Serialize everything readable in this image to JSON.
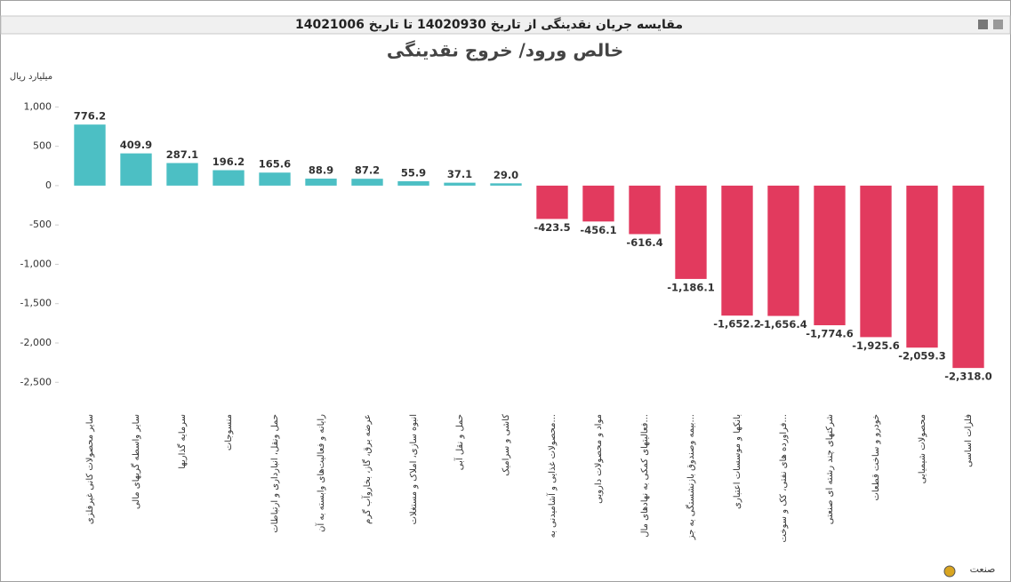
{
  "window_title": "مقایسه جریان نقدینگی از تاریخ 14020930 تا تاریخ 14021006",
  "chart_data": {
    "type": "bar",
    "title": "خالص ورود/ خروج نقدینگی",
    "y_label": "میلیارد ریال",
    "x_label": "صنعت",
    "categories": [
      "سایر محصولات کانی غیرفلزی",
      "سایر واسطه گریهای مالی",
      "سرمایه گذاریها",
      "منسوجات",
      "حمل ونقل، انبارداری و ارتباطات",
      "رایانه و فعالیت‌های وابسته به آن",
      "عرضه برق، گاز، بخاروآب گرم",
      "انبوه سازی، املاک و مستغلات",
      "حمل و نقل آبی",
      "کاشی و سرامیک",
      "محصولات غذایی و آشامیدنی به...",
      "مواد و محصولات دارویی",
      "فعالیتهای کمکی به نهادهای مال...",
      "بیمه وصندوق بازنشستگی به جز...",
      "بانکها و موسسات اعتباری",
      "فراورده های نفتی، کک و سوخت...",
      "شرکتهای چند رشته ای صنعتی",
      "خودرو و ساخت قطعات",
      "محصولات شیمیایی",
      "فلزات اساسی"
    ],
    "values": [
      776.2,
      409.9,
      287.1,
      196.2,
      165.6,
      88.9,
      87.2,
      55.9,
      37.1,
      29.0,
      -423.5,
      -456.1,
      -616.4,
      -1186.1,
      -1652.2,
      -1656.4,
      -1774.6,
      -1925.6,
      -2059.3,
      -2318.0
    ],
    "value_labels": [
      "776.2",
      "409.9",
      "287.1",
      "196.2",
      "165.6",
      "88.9",
      "87.2",
      "55.9",
      "37.1",
      "29.0",
      "-423.5",
      "-456.1",
      "-616.4",
      "-1,186.1",
      "-1,652.2",
      "-1,656.4",
      "-1,774.6",
      "-1,925.6",
      "-2,059.3",
      "-2,318.0"
    ],
    "colors": {
      "positive": "#4cbfc4",
      "negative": "#e23a5e"
    },
    "ylim": [
      -2610,
      1230
    ],
    "yticks": [
      {
        "value": 1000,
        "label": "1,000"
      },
      500,
      0,
      -500,
      {
        "value": -1000,
        "label": "-1,000"
      },
      {
        "value": -1500,
        "label": "-1,500"
      },
      {
        "value": -2000,
        "label": "-2,000"
      },
      {
        "value": -2500,
        "label": "-2,500"
      }
    ],
    "grid": false
  }
}
